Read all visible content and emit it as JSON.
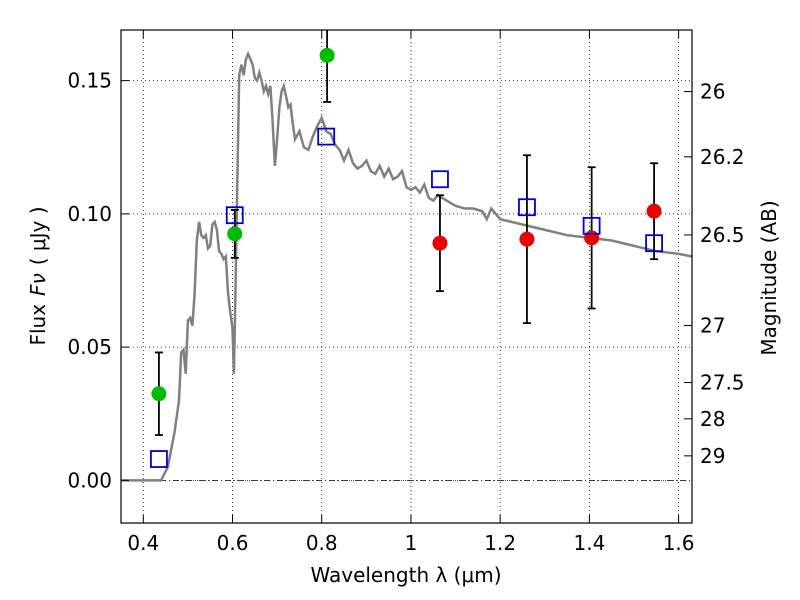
{
  "chart_data": {
    "type": "scatter",
    "xlabel": "Wavelength  λ (μm)",
    "ylabel_text": "Flux",
    "ylabel_symbol": "Fν",
    "ylabel_unit": "( μJy )",
    "right_ylabel": "Magnitude (AB)",
    "xlim": [
      0.35,
      1.63
    ],
    "ylim": [
      -0.016,
      0.169
    ],
    "x_ticks": [
      0.4,
      0.6,
      0.8,
      1.0,
      1.2,
      1.4,
      1.6
    ],
    "x_tick_labels": [
      "0.4",
      "0.6",
      "0.8",
      "1",
      "1.2",
      "1.4",
      "1.6"
    ],
    "y_ticks": [
      0.0,
      0.05,
      0.1,
      0.15
    ],
    "y_tick_labels": [
      "0.00",
      "0.05",
      "0.10",
      "0.15"
    ],
    "right_ticks": [
      {
        "label": "26",
        "flux": 0.1459
      },
      {
        "label": "26.2",
        "flux": 0.1214
      },
      {
        "label": "26.5",
        "flux": 0.0921
      },
      {
        "label": "27",
        "flux": 0.0581
      },
      {
        "label": "27.5",
        "flux": 0.0367
      },
      {
        "label": "28",
        "flux": 0.0231
      },
      {
        "label": "29",
        "flux": 0.0092
      }
    ],
    "grid": true,
    "colors": {
      "model": "#808080",
      "green": "#00bb00",
      "red": "#ee0000",
      "square": "#0000cc",
      "errorbar": "#000000"
    },
    "series": [
      {
        "marker": "circle",
        "color": "green",
        "points": [
          {
            "x": 0.435,
            "y": 0.0325,
            "yerr": 0.0155
          },
          {
            "x": 0.605,
            "y": 0.0925,
            "yerr": 0.009
          },
          {
            "x": 0.812,
            "y": 0.1595,
            "yerr": 0.0175
          }
        ]
      },
      {
        "marker": "circle",
        "color": "red",
        "points": [
          {
            "x": 1.065,
            "y": 0.089,
            "yerr": 0.018
          },
          {
            "x": 1.26,
            "y": 0.0905,
            "yerr": 0.0315
          },
          {
            "x": 1.405,
            "y": 0.091,
            "yerr": 0.0265
          },
          {
            "x": 1.545,
            "y": 0.101,
            "yerr": 0.018
          }
        ]
      },
      {
        "marker": "square",
        "color": "square",
        "points": [
          {
            "x": 0.435,
            "y": 0.008
          },
          {
            "x": 0.605,
            "y": 0.0995
          },
          {
            "x": 0.81,
            "y": 0.129
          },
          {
            "x": 1.065,
            "y": 0.113
          },
          {
            "x": 1.26,
            "y": 0.1025
          },
          {
            "x": 1.405,
            "y": 0.0955
          },
          {
            "x": 1.545,
            "y": 0.089
          }
        ]
      }
    ],
    "model_curve": {
      "x": [
        0.35,
        0.44,
        0.455,
        0.47,
        0.48,
        0.485,
        0.49,
        0.495,
        0.5,
        0.505,
        0.51,
        0.515,
        0.52,
        0.525,
        0.53,
        0.535,
        0.54,
        0.545,
        0.55,
        0.555,
        0.56,
        0.565,
        0.57,
        0.575,
        0.58,
        0.585,
        0.59,
        0.595,
        0.6,
        0.603,
        0.606,
        0.61,
        0.615,
        0.62,
        0.625,
        0.63,
        0.635,
        0.64,
        0.645,
        0.65,
        0.655,
        0.66,
        0.665,
        0.67,
        0.675,
        0.68,
        0.685,
        0.69,
        0.695,
        0.7,
        0.705,
        0.71,
        0.715,
        0.72,
        0.725,
        0.73,
        0.735,
        0.74,
        0.75,
        0.76,
        0.77,
        0.78,
        0.79,
        0.8,
        0.81,
        0.82,
        0.83,
        0.84,
        0.85,
        0.86,
        0.87,
        0.88,
        0.89,
        0.9,
        0.91,
        0.92,
        0.93,
        0.94,
        0.95,
        0.96,
        0.97,
        0.98,
        0.99,
        1.0,
        1.01,
        1.02,
        1.03,
        1.04,
        1.05,
        1.06,
        1.08,
        1.1,
        1.12,
        1.14,
        1.16,
        1.17,
        1.18,
        1.2,
        1.25,
        1.3,
        1.35,
        1.4,
        1.45,
        1.5,
        1.55,
        1.6,
        1.63
      ],
      "y": [
        0.0,
        0.0,
        0.005,
        0.018,
        0.03,
        0.048,
        0.049,
        0.04,
        0.06,
        0.061,
        0.058,
        0.07,
        0.09,
        0.097,
        0.092,
        0.091,
        0.092,
        0.087,
        0.088,
        0.096,
        0.097,
        0.094,
        0.086,
        0.085,
        0.083,
        0.084,
        0.07,
        0.063,
        0.057,
        0.04,
        0.065,
        0.105,
        0.152,
        0.156,
        0.152,
        0.158,
        0.16,
        0.158,
        0.156,
        0.151,
        0.15,
        0.153,
        0.15,
        0.146,
        0.148,
        0.145,
        0.148,
        0.134,
        0.118,
        0.128,
        0.14,
        0.146,
        0.148,
        0.144,
        0.14,
        0.141,
        0.134,
        0.128,
        0.131,
        0.125,
        0.124,
        0.129,
        0.133,
        0.136,
        0.131,
        0.13,
        0.126,
        0.124,
        0.12,
        0.124,
        0.119,
        0.117,
        0.118,
        0.12,
        0.116,
        0.115,
        0.118,
        0.114,
        0.117,
        0.113,
        0.114,
        0.116,
        0.11,
        0.109,
        0.11,
        0.108,
        0.111,
        0.106,
        0.105,
        0.107,
        0.105,
        0.103,
        0.102,
        0.102,
        0.101,
        0.098,
        0.102,
        0.098,
        0.096,
        0.094,
        0.092,
        0.091,
        0.09,
        0.088,
        0.086,
        0.085,
        0.084
      ]
    }
  }
}
